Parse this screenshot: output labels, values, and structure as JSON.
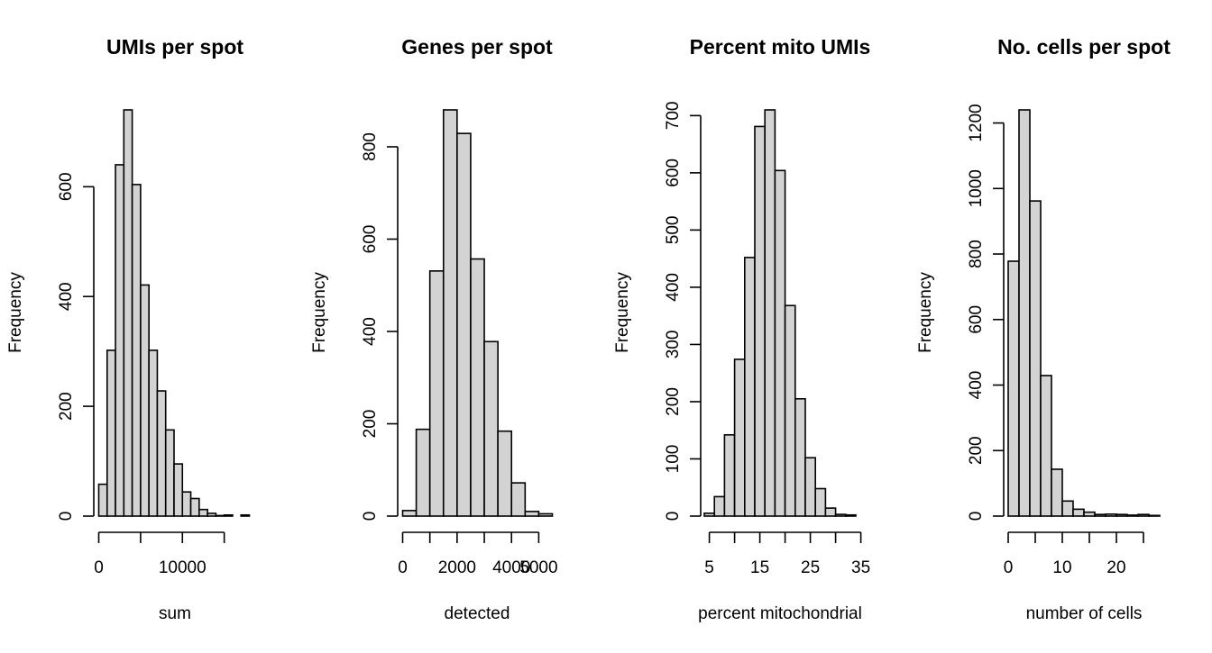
{
  "chart_data": [
    {
      "type": "bar",
      "title": "UMIs per spot",
      "xlabel": "sum",
      "ylabel": "Frequency",
      "bin_width": 1000,
      "xlim": [
        0,
        18000
      ],
      "ylim": [
        0,
        740
      ],
      "x_ticks": [
        0,
        5000,
        10000,
        15000
      ],
      "x_tick_labels": [
        "0",
        "",
        "10000",
        ""
      ],
      "y_ticks": [
        0,
        200,
        400,
        600
      ],
      "y_tick_labels": [
        "0",
        "200",
        "400",
        "600"
      ],
      "bin_starts": [
        0,
        1000,
        2000,
        3000,
        4000,
        5000,
        6000,
        7000,
        8000,
        9000,
        10000,
        11000,
        12000,
        13000,
        14000,
        15000,
        16000,
        17000
      ],
      "values": [
        58,
        302,
        640,
        740,
        604,
        421,
        302,
        228,
        157,
        95,
        44,
        32,
        12,
        5,
        1,
        2,
        0,
        2
      ]
    },
    {
      "type": "bar",
      "title": "Genes per spot",
      "xlabel": "detected",
      "ylabel": "Frequency",
      "bin_width": 500,
      "xlim": [
        0,
        5500
      ],
      "ylim": [
        0,
        880
      ],
      "x_ticks": [
        0,
        1000,
        2000,
        3000,
        4000,
        5000
      ],
      "x_tick_labels": [
        "0",
        "",
        "2000",
        "",
        "4000",
        "5000"
      ],
      "y_ticks": [
        0,
        200,
        400,
        600,
        800
      ],
      "y_tick_labels": [
        "0",
        "200",
        "400",
        "600",
        "800"
      ],
      "bin_starts": [
        0,
        500,
        1000,
        1500,
        2000,
        2500,
        3000,
        3500,
        4000,
        4500,
        5000
      ],
      "values": [
        12,
        188,
        531,
        880,
        829,
        557,
        378,
        184,
        72,
        10,
        5
      ]
    },
    {
      "type": "bar",
      "title": "Percent mito UMIs",
      "xlabel": "percent mitochondrial",
      "ylabel": "Frequency",
      "bin_width": 2,
      "xlim": [
        4,
        34
      ],
      "ylim": [
        0,
        710
      ],
      "x_ticks": [
        5,
        10,
        15,
        20,
        25,
        30,
        35
      ],
      "x_tick_labels": [
        "5",
        "",
        "15",
        "",
        "25",
        "",
        "35"
      ],
      "y_ticks": [
        0,
        100,
        200,
        300,
        400,
        500,
        600,
        700
      ],
      "y_tick_labels": [
        "0",
        "100",
        "200",
        "300",
        "400",
        "500",
        "600",
        "700"
      ],
      "bin_starts": [
        4,
        6,
        8,
        10,
        12,
        14,
        16,
        18,
        20,
        22,
        24,
        26,
        28,
        30,
        32
      ],
      "values": [
        5,
        34,
        142,
        274,
        452,
        681,
        710,
        604,
        368,
        205,
        102,
        48,
        14,
        3,
        2
      ]
    },
    {
      "type": "bar",
      "title": "No. cells per spot",
      "xlabel": "number of cells",
      "ylabel": "Frequency",
      "bin_width": 2,
      "xlim": [
        0,
        28
      ],
      "ylim": [
        0,
        1240
      ],
      "x_ticks": [
        0,
        5,
        10,
        15,
        20,
        25
      ],
      "x_tick_labels": [
        "0",
        "",
        "10",
        "",
        "20",
        ""
      ],
      "y_ticks": [
        0,
        200,
        400,
        600,
        800,
        1000,
        1200
      ],
      "y_tick_labels": [
        "0",
        "200",
        "400",
        "600",
        "800",
        "1000",
        "1200"
      ],
      "bin_starts": [
        0,
        2,
        4,
        6,
        8,
        10,
        12,
        14,
        16,
        18,
        20,
        22,
        24,
        26
      ],
      "values": [
        778,
        1240,
        962,
        429,
        143,
        46,
        21,
        12,
        5,
        6,
        5,
        3,
        5,
        2
      ]
    }
  ]
}
